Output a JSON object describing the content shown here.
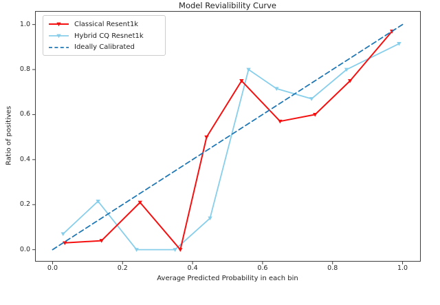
{
  "title": "Model Revialibility Curve",
  "chart_data": {
    "type": "line",
    "title": "Model Revialibility Curve",
    "xlabel": "Average Predicted Probability in each bin",
    "ylabel": "Ratio of positives",
    "xlim": [
      -0.05,
      1.05
    ],
    "ylim": [
      -0.05,
      1.06
    ],
    "x_ticks": [
      0.0,
      0.2,
      0.4,
      0.6,
      0.8,
      1.0
    ],
    "y_ticks": [
      0.0,
      0.2,
      0.4,
      0.6,
      0.8,
      1.0
    ],
    "x_tick_labels": [
      "0.0",
      "0.2",
      "0.4",
      "0.6",
      "0.8",
      "1.0"
    ],
    "y_tick_labels": [
      "0.0",
      "0.2",
      "0.4",
      "0.6",
      "0.8",
      "1.0"
    ],
    "grid": false,
    "legend_position": "upper left",
    "axis_color": "#3c3c3c",
    "series": [
      {
        "name": "Classical Resent1k",
        "color": "#f50f0f",
        "style": "solid",
        "marker": "triangle-down",
        "line_width": 2.0,
        "zorder": 2,
        "points": [
          [
            0.035,
            0.03
          ],
          [
            0.14,
            0.04
          ],
          [
            0.25,
            0.21
          ],
          [
            0.365,
            0.0
          ],
          [
            0.44,
            0.5
          ],
          [
            0.54,
            0.75
          ],
          [
            0.65,
            0.57
          ],
          [
            0.75,
            0.6
          ],
          [
            0.85,
            0.75
          ],
          [
            0.97,
            0.97
          ]
        ]
      },
      {
        "name": "Hybrid CQ Resnet1k",
        "color": "#87ceeb",
        "style": "solid",
        "marker": "triangle-down",
        "line_width": 1.8,
        "zorder": 1,
        "points": [
          [
            0.03,
            0.07
          ],
          [
            0.13,
            0.215
          ],
          [
            0.24,
            0.0
          ],
          [
            0.35,
            0.0
          ],
          [
            0.45,
            0.14
          ],
          [
            0.56,
            0.8
          ],
          [
            0.64,
            0.715
          ],
          [
            0.74,
            0.67
          ],
          [
            0.84,
            0.8
          ],
          [
            0.99,
            0.915
          ]
        ]
      },
      {
        "name": "Ideally Calibrated",
        "color": "#1f77b4",
        "style": "dashed",
        "marker": "none",
        "line_width": 1.8,
        "zorder": 3,
        "points": [
          [
            0.0,
            0.0
          ],
          [
            1.0,
            1.0
          ]
        ]
      }
    ]
  }
}
